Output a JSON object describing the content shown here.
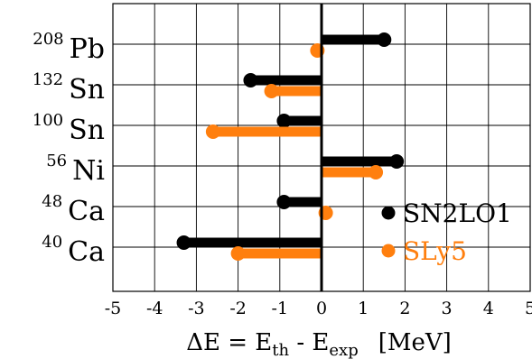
{
  "chart_data": {
    "type": "bar",
    "orientation": "horizontal",
    "categories": [
      {
        "mass": "208",
        "symbol": "Pb"
      },
      {
        "mass": "132",
        "symbol": "Sn"
      },
      {
        "mass": "100",
        "symbol": "Sn"
      },
      {
        "mass": "56",
        "symbol": "Ni"
      },
      {
        "mass": "48",
        "symbol": "Ca"
      },
      {
        "mass": "40",
        "symbol": "Ca"
      }
    ],
    "series": [
      {
        "name": "SN2LO1",
        "color": "#000000",
        "values": [
          1.5,
          -1.7,
          -0.9,
          1.8,
          -0.9,
          -3.3
        ]
      },
      {
        "name": "SLy5",
        "color": "#ff7f0e",
        "values": [
          -0.1,
          -1.2,
          -2.6,
          1.3,
          0.1,
          -2.0
        ]
      }
    ],
    "x_ticks": [
      "-5",
      "-4",
      "-3",
      "-2",
      "-1",
      "0",
      "1",
      "2",
      "3",
      "4",
      "5"
    ],
    "xlim": [
      -5,
      5
    ],
    "xlabel": {
      "prefix": "ΔE = E",
      "sub1": "th",
      "mid": " - E",
      "sub2": "exp",
      "unit": "[MeV]"
    },
    "grid": true,
    "legend_position": "right"
  }
}
